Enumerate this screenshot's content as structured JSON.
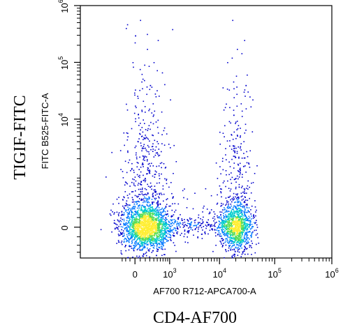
{
  "chart_data": {
    "type": "scatter",
    "subtype": "flow-cytometry-density-dot-plot",
    "title": "",
    "xlabel": "AF700 R712-APCA700-A",
    "ylabel": "FITC B525-FITC-A",
    "outer_xlabel": "CD4-AF700",
    "outer_ylabel": "TIGIF-FITC",
    "scale": "biexponential",
    "grid": false,
    "legend": "none",
    "x_ticks": [
      {
        "value": 0,
        "base": "0",
        "exp": ""
      },
      {
        "value": 1000,
        "base": "10",
        "exp": "3"
      },
      {
        "value": 10000,
        "base": "10",
        "exp": "4"
      },
      {
        "value": 100000,
        "base": "10",
        "exp": "5"
      },
      {
        "value": 1000000,
        "base": "10",
        "exp": "6"
      }
    ],
    "y_ticks": [
      {
        "value": 0,
        "base": "0",
        "exp": ""
      },
      {
        "value": 10000,
        "base": "10",
        "exp": "4"
      },
      {
        "value": 100000,
        "base": "10",
        "exp": "5"
      },
      {
        "value": 1000000,
        "base": "10",
        "exp": "6"
      }
    ],
    "xlim": [
      -400,
      1000000
    ],
    "ylim": [
      -400,
      1000000
    ],
    "density_colors": [
      "#0000cc",
      "#0077ff",
      "#00cccc",
      "#55dd55",
      "#ffee33"
    ],
    "populations": [
      {
        "x_center": 200,
        "x_spread": 300,
        "y_center": 0,
        "y_spread": 250,
        "events": 2200
      },
      {
        "x_center": 20000,
        "x_spread": 8000,
        "y_center": 0,
        "y_spread": 250,
        "events": 1300
      }
    ],
    "sparse_points": [
      {
        "x": 0,
        "y": 300000
      },
      {
        "x": 300,
        "y": 40000
      },
      {
        "x": 30000,
        "y": 40000
      },
      {
        "x": 18000,
        "y": 12000
      }
    ]
  }
}
